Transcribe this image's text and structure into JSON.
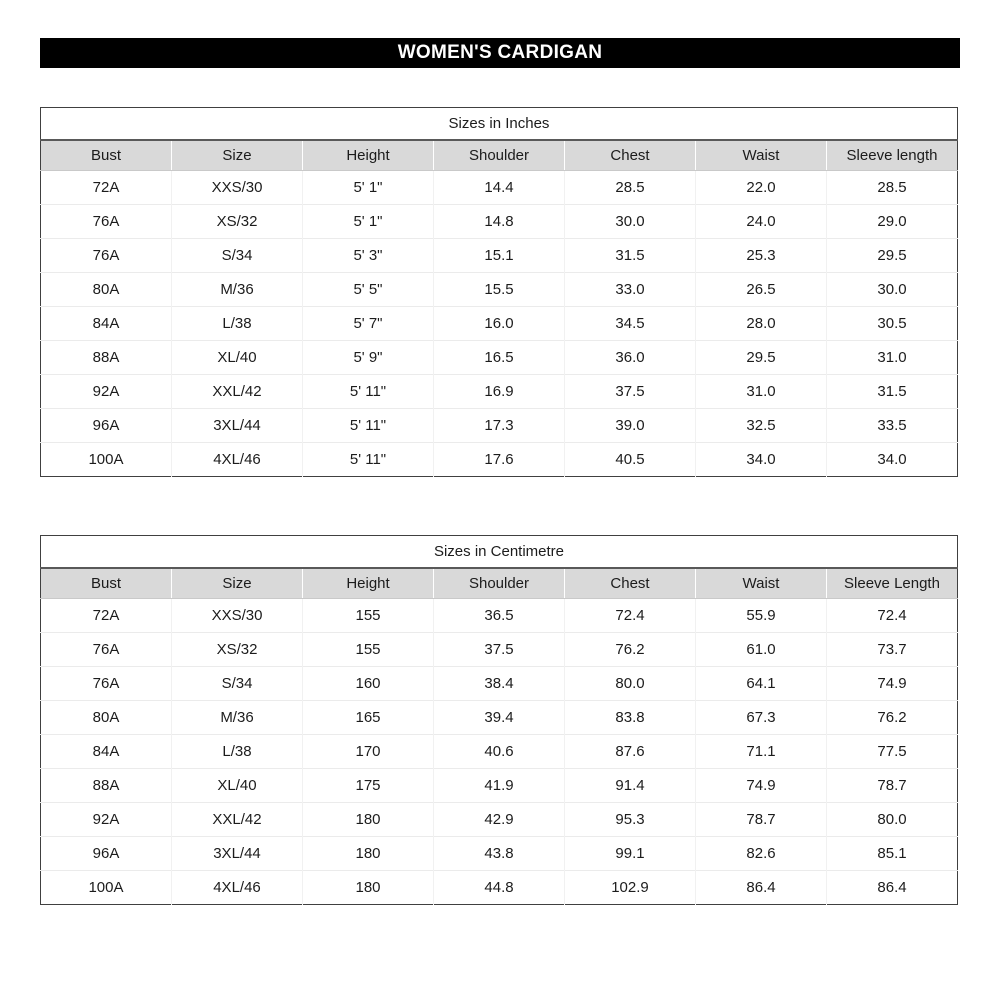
{
  "page": {
    "title": "WOMEN'S CARDIGAN"
  },
  "colors": {
    "banner_bg": "#000000",
    "banner_text": "#ffffff",
    "header_row_bg": "#d9d9d9",
    "table_border": "#404040",
    "gridline": "#ebebeb"
  },
  "tables": [
    {
      "title": "Sizes in Inches",
      "columns": [
        "Bust",
        "Size",
        "Height",
        "Shoulder",
        "Chest",
        "Waist",
        "Sleeve length"
      ],
      "rows": [
        [
          "72A",
          "XXS/30",
          "5' 1\"",
          "14.4",
          "28.5",
          "22.0",
          "28.5"
        ],
        [
          "76A",
          "XS/32",
          "5' 1\"",
          "14.8",
          "30.0",
          "24.0",
          "29.0"
        ],
        [
          "76A",
          "S/34",
          "5' 3\"",
          "15.1",
          "31.5",
          "25.3",
          "29.5"
        ],
        [
          "80A",
          "M/36",
          "5' 5\"",
          "15.5",
          "33.0",
          "26.5",
          "30.0"
        ],
        [
          "84A",
          "L/38",
          "5' 7\"",
          "16.0",
          "34.5",
          "28.0",
          "30.5"
        ],
        [
          "88A",
          "XL/40",
          "5' 9\"",
          "16.5",
          "36.0",
          "29.5",
          "31.0"
        ],
        [
          "92A",
          "XXL/42",
          "5' 11\"",
          "16.9",
          "37.5",
          "31.0",
          "31.5"
        ],
        [
          "96A",
          "3XL/44",
          "5' 11\"",
          "17.3",
          "39.0",
          "32.5",
          "33.5"
        ],
        [
          "100A",
          "4XL/46",
          "5' 11\"",
          "17.6",
          "40.5",
          "34.0",
          "34.0"
        ]
      ]
    },
    {
      "title": "Sizes in Centimetre",
      "columns": [
        "Bust",
        "Size",
        "Height",
        "Shoulder",
        "Chest",
        "Waist",
        "Sleeve Length"
      ],
      "rows": [
        [
          "72A",
          "XXS/30",
          "155",
          "36.5",
          "72.4",
          "55.9",
          "72.4"
        ],
        [
          "76A",
          "XS/32",
          "155",
          "37.5",
          "76.2",
          "61.0",
          "73.7"
        ],
        [
          "76A",
          "S/34",
          "160",
          "38.4",
          "80.0",
          "64.1",
          "74.9"
        ],
        [
          "80A",
          "M/36",
          "165",
          "39.4",
          "83.8",
          "67.3",
          "76.2"
        ],
        [
          "84A",
          "L/38",
          "170",
          "40.6",
          "87.6",
          "71.1",
          "77.5"
        ],
        [
          "88A",
          "XL/40",
          "175",
          "41.9",
          "91.4",
          "74.9",
          "78.7"
        ],
        [
          "92A",
          "XXL/42",
          "180",
          "42.9",
          "95.3",
          "78.7",
          "80.0"
        ],
        [
          "96A",
          "3XL/44",
          "180",
          "43.8",
          "99.1",
          "82.6",
          "85.1"
        ],
        [
          "100A",
          "4XL/46",
          "180",
          "44.8",
          "102.9",
          "86.4",
          "86.4"
        ]
      ]
    }
  ]
}
